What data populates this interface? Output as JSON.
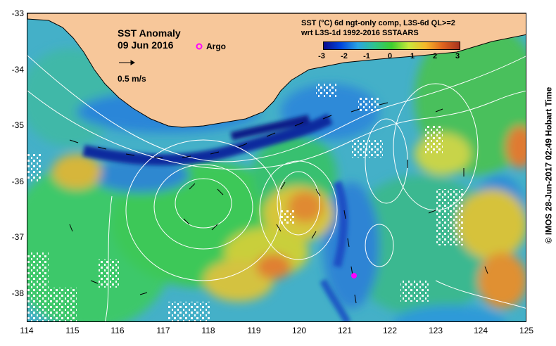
{
  "map": {
    "title": "SST Anomaly",
    "date": "09 Jun 2016",
    "scale_label": "0.5 m/s",
    "argo_label": "Argo",
    "legend_line1": "SST (°C) 6d ngt-only comp, L3S-6d QL>=2",
    "legend_line2": "wrt L3S-1d 1992-2016 SSTAARS",
    "credit": "© IMOS 28-Jun-2017 02:49 Hobart Time",
    "colors": {
      "land": "#f7c79a",
      "argo": "#ff00ff",
      "contour": "#ffffff"
    }
  },
  "colorbar": {
    "ticks": [
      "-3",
      "-2",
      "-1",
      "0",
      "1",
      "2",
      "3"
    ],
    "colors": [
      "#0a0a8c",
      "#0044dd",
      "#2aa4e4",
      "#2fc48c",
      "#3ecf2e",
      "#c8e83c",
      "#f5b82a",
      "#e0641e",
      "#a8321e"
    ]
  },
  "axes": {
    "y_ticks": [
      "-33",
      "-34",
      "-35",
      "-36",
      "-37",
      "-38"
    ],
    "x_ticks": [
      "114",
      "115",
      "116",
      "117",
      "118",
      "119",
      "120",
      "121",
      "122",
      "123",
      "124",
      "125"
    ]
  }
}
